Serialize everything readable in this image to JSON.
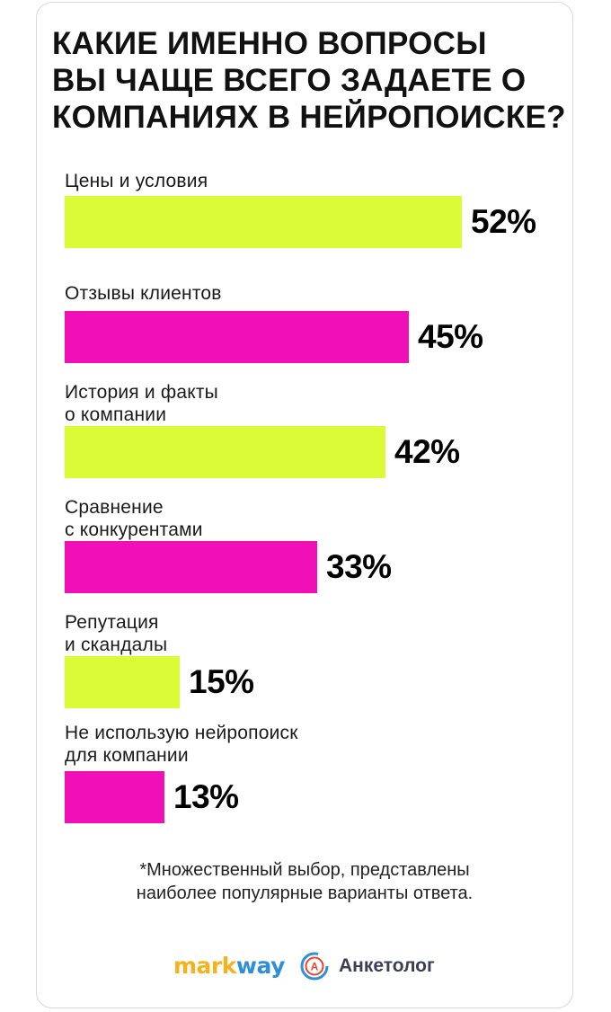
{
  "title_lines": [
    "Какие именно вопросы",
    "вы чаще всего задаете о",
    "компаниях в нейропоиске?"
  ],
  "colors": {
    "lime": "#dafb35",
    "magenta": "#f10fb8"
  },
  "chart_data": {
    "type": "bar",
    "orientation": "horizontal",
    "categories": [
      [
        "Цены и условия"
      ],
      [
        "Отзывы клиентов"
      ],
      [
        "История и факты",
        "о компании"
      ],
      [
        "Сравнение",
        "с конкурентами"
      ],
      [
        "Репутация",
        "и скандалы"
      ],
      [
        "Не использую нейропоиск",
        "для компании"
      ]
    ],
    "values": [
      52,
      45,
      42,
      33,
      15,
      13
    ],
    "value_labels": [
      "52%",
      "45%",
      "42%",
      "33%",
      "15%",
      "13%"
    ],
    "bar_colors": [
      "#dafb35",
      "#f10fb8",
      "#dafb35",
      "#f10fb8",
      "#dafb35",
      "#f10fb8"
    ],
    "unit": "%",
    "xlim": [
      0,
      100
    ],
    "grid": false,
    "legend": "none"
  },
  "footnote_lines": [
    "*Множественный выбор, представлены",
    "наиболее популярные варианты ответа."
  ],
  "logos": {
    "markway": {
      "part1": "mark",
      "part2": "way",
      "icon": "markway-logo"
    },
    "anketolog": {
      "text": "Анкетолог",
      "icon_letter": "A",
      "icon": "anketolog-logo-icon"
    }
  }
}
